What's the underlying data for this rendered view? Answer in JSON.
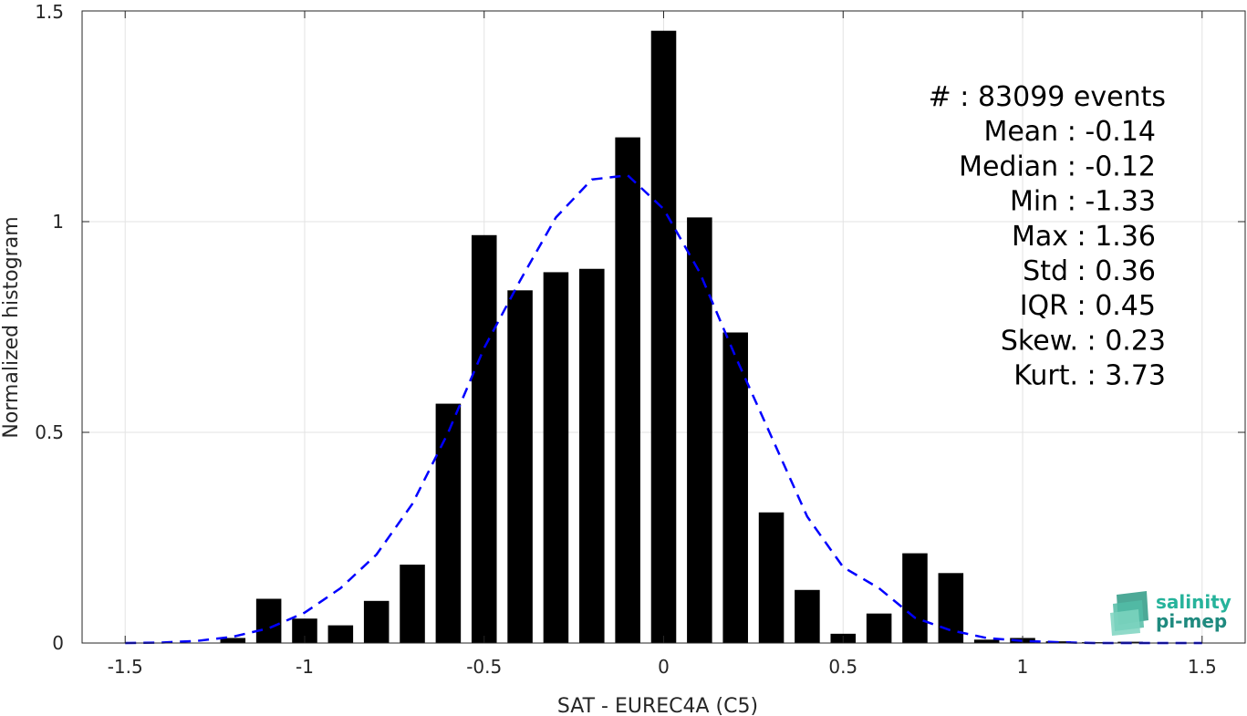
{
  "chart_data": {
    "type": "bar",
    "title": "",
    "xlabel": "SAT - EUREC4A (C5)",
    "ylabel": "Normalized histogram",
    "xlim": [
      -1.62,
      1.62
    ],
    "ylim": [
      0,
      1.5
    ],
    "x_ticks": [
      -1.5,
      -1,
      -0.5,
      0,
      0.5,
      1,
      1.5
    ],
    "x_tick_labels": [
      "-1.5",
      "-1",
      "-0.5",
      "0",
      "0.5",
      "1",
      "1.5"
    ],
    "y_ticks": [
      0,
      0.5,
      1,
      1.5
    ],
    "y_tick_labels": [
      "0",
      "0.5",
      "1",
      "1.5"
    ],
    "grid": true,
    "bin_width": 0.1,
    "bar_width_fraction": 0.7,
    "bar_color": "#000000",
    "bars": [
      {
        "x": -1.2,
        "value": 0.012
      },
      {
        "x": -1.1,
        "value": 0.105
      },
      {
        "x": -1.0,
        "value": 0.058
      },
      {
        "x": -0.9,
        "value": 0.042
      },
      {
        "x": -0.8,
        "value": 0.1
      },
      {
        "x": -0.7,
        "value": 0.186
      },
      {
        "x": -0.6,
        "value": 0.568
      },
      {
        "x": -0.5,
        "value": 0.968
      },
      {
        "x": -0.4,
        "value": 0.837
      },
      {
        "x": -0.3,
        "value": 0.88
      },
      {
        "x": -0.2,
        "value": 0.888
      },
      {
        "x": -0.1,
        "value": 1.2
      },
      {
        "x": 0.0,
        "value": 1.453
      },
      {
        "x": 0.1,
        "value": 1.01
      },
      {
        "x": 0.2,
        "value": 0.737
      },
      {
        "x": 0.3,
        "value": 0.31
      },
      {
        "x": 0.4,
        "value": 0.126
      },
      {
        "x": 0.5,
        "value": 0.022
      },
      {
        "x": 0.6,
        "value": 0.07
      },
      {
        "x": 0.7,
        "value": 0.213
      },
      {
        "x": 0.8,
        "value": 0.166
      },
      {
        "x": 0.9,
        "value": 0.008
      },
      {
        "x": 1.0,
        "value": 0.012
      },
      {
        "x": 1.1,
        "value": 0.004
      },
      {
        "x": 1.2,
        "value": 0.002
      },
      {
        "x": 1.3,
        "value": 0.003
      }
    ],
    "fit_curve": {
      "style": "dashed",
      "color": "#0000ff",
      "points": [
        [
          -1.5,
          0.0
        ],
        [
          -1.4,
          0.001
        ],
        [
          -1.3,
          0.005
        ],
        [
          -1.2,
          0.015
        ],
        [
          -1.1,
          0.035
        ],
        [
          -1.0,
          0.072
        ],
        [
          -0.9,
          0.13
        ],
        [
          -0.8,
          0.21
        ],
        [
          -0.7,
          0.33
        ],
        [
          -0.6,
          0.5
        ],
        [
          -0.5,
          0.7
        ],
        [
          -0.4,
          0.86
        ],
        [
          -0.3,
          1.01
        ],
        [
          -0.2,
          1.1
        ],
        [
          -0.1,
          1.11
        ],
        [
          0.0,
          1.03
        ],
        [
          0.1,
          0.88
        ],
        [
          0.2,
          0.68
        ],
        [
          0.3,
          0.49
        ],
        [
          0.4,
          0.3
        ],
        [
          0.5,
          0.18
        ],
        [
          0.6,
          0.13
        ],
        [
          0.7,
          0.06
        ],
        [
          0.8,
          0.03
        ],
        [
          0.9,
          0.012
        ],
        [
          1.0,
          0.005
        ],
        [
          1.1,
          0.002
        ],
        [
          1.2,
          0.0
        ],
        [
          1.3,
          0.0
        ],
        [
          1.4,
          0.0
        ],
        [
          1.5,
          0.0
        ]
      ]
    },
    "stats": [
      {
        "label": "#  ",
        "value": "83099 events"
      },
      {
        "label": "Mean",
        "value": "-0.14"
      },
      {
        "label": "Median",
        "value": "-0.12"
      },
      {
        "label": "Min",
        "value": "-1.33"
      },
      {
        "label": "Max",
        "value": "1.36"
      },
      {
        "label": "Std",
        "value": "0.36"
      },
      {
        "label": "IQR",
        "value": "0.45"
      },
      {
        "label": "Skew.",
        "value": "0.23"
      },
      {
        "label": "Kurt.",
        "value": "3.73"
      }
    ]
  },
  "logo": {
    "line1": "salinity",
    "line2": "pi-mep",
    "color_text1": "#26b39b",
    "color_text2": "#1f8a7f"
  }
}
